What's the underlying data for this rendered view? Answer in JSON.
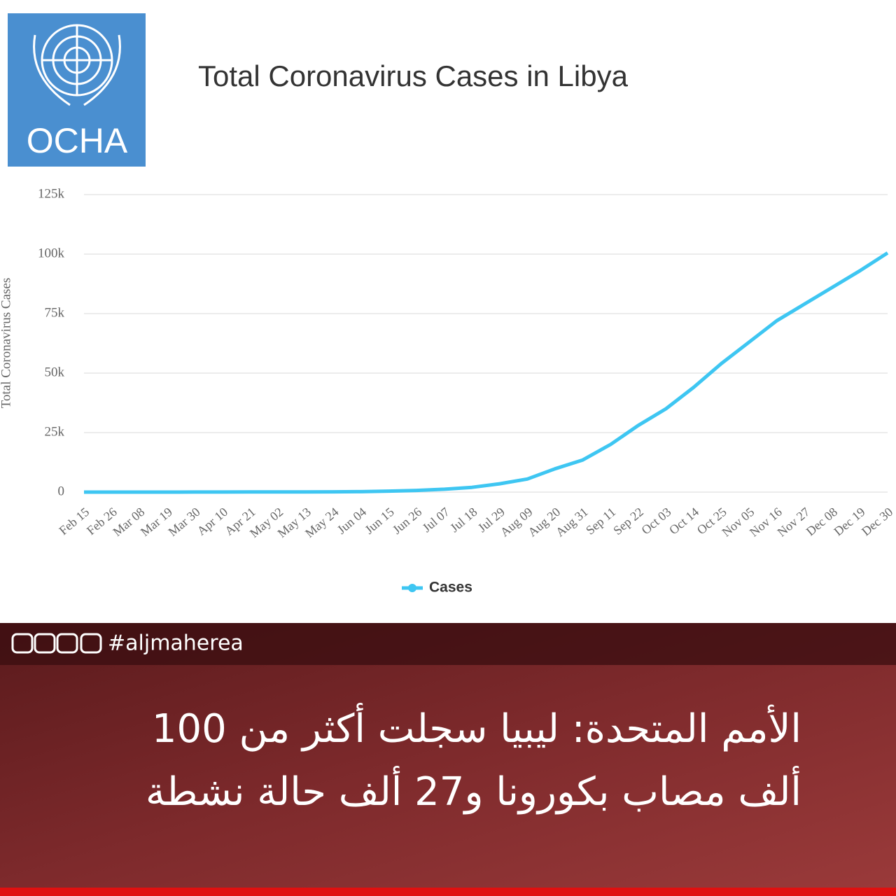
{
  "logo": "OCHA",
  "hashtag": "#aljmaherea",
  "headline": [
    "الأمم المتحدة: ليبيا سجلت أكثر من 100",
    "ألف مصاب بكورونا و27 ألف حالة نشطة"
  ],
  "chart_data": {
    "type": "line",
    "title": "Total Coronavirus Cases in Libya",
    "y_label": "Total Coronavirus Cases",
    "categories": [
      "Feb 15",
      "Feb 26",
      "Mar 08",
      "Mar 19",
      "Mar 30",
      "Apr 10",
      "Apr 21",
      "May 02",
      "May 13",
      "May 24",
      "Jun 04",
      "Jun 15",
      "Jun 26",
      "Jul 07",
      "Jul 18",
      "Jul 29",
      "Aug 09",
      "Aug 20",
      "Aug 31",
      "Sep 11",
      "Sep 22",
      "Oct 03",
      "Oct 14",
      "Oct 25",
      "Nov 05",
      "Nov 16",
      "Nov 27",
      "Dec 08",
      "Dec 19",
      "Dec 30"
    ],
    "series": [
      {
        "name": "Cases",
        "color": "#3ec6f2",
        "values": [
          0,
          0,
          0,
          0,
          20,
          50,
          60,
          70,
          80,
          100,
          200,
          400,
          700,
          1200,
          2000,
          3500,
          5500,
          9800,
          13500,
          20000,
          28000,
          35000,
          44000,
          54000,
          63000,
          72000,
          79000,
          86000,
          93000,
          100500
        ]
      }
    ],
    "ylim": [
      0,
      125000
    ],
    "yticks": [
      0,
      {
        "value": 25000,
        "label": "25k"
      },
      {
        "value": 50000,
        "label": "50k"
      },
      {
        "value": 75000,
        "label": "75k"
      },
      {
        "value": 100000,
        "label": "100k"
      },
      {
        "value": 125000,
        "label": "125k"
      }
    ],
    "grid": true,
    "legend": "bottom"
  }
}
